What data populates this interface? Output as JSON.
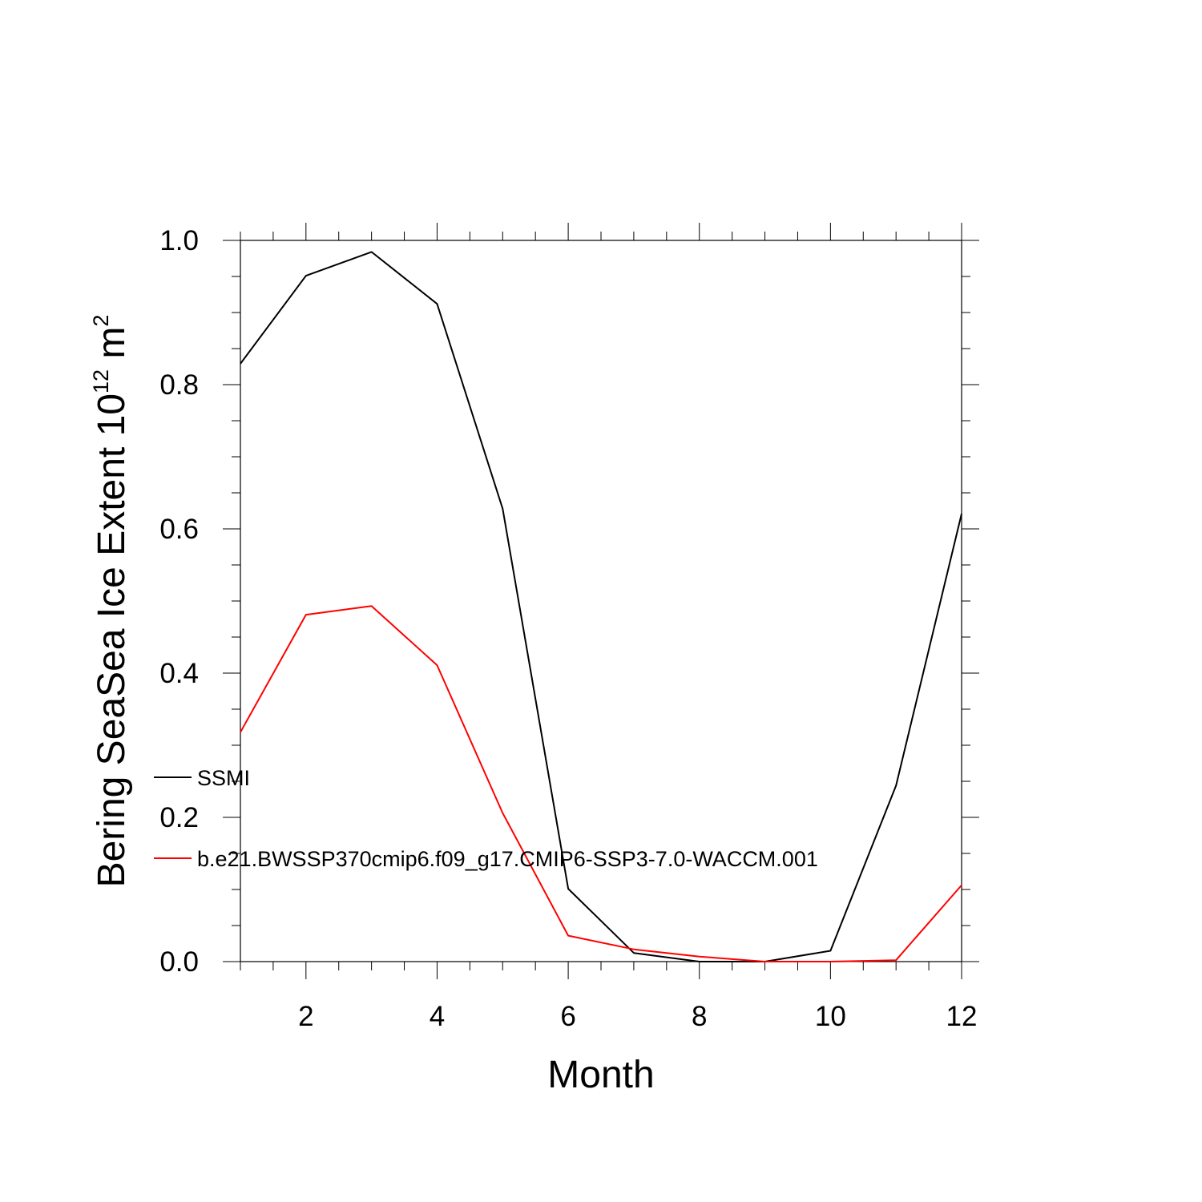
{
  "chart_data": {
    "type": "line",
    "xlabel": "Month",
    "ylabel_main": "Bering SeaSea Ice Extent 10",
    "ylabel_exp": "12",
    "ylabel_unit": " m",
    "ylabel_unit_exp": "2",
    "xlim": [
      1,
      12
    ],
    "ylim": [
      0,
      1.0
    ],
    "x_ticks": [
      2,
      4,
      6,
      8,
      10,
      12
    ],
    "x_tick_labels": [
      "2",
      "4",
      "6",
      "8",
      "10",
      "12"
    ],
    "y_ticks": [
      0,
      0.2,
      0.4,
      0.6,
      0.8,
      1.0
    ],
    "y_tick_labels": [
      "0.0",
      "0.2",
      "0.4",
      "0.6",
      "0.8",
      "1.0"
    ],
    "legend_position": "lower-left",
    "grid": false,
    "x": [
      1,
      2,
      3,
      4,
      5,
      6,
      7,
      8,
      9,
      10,
      11,
      12
    ],
    "series": [
      {
        "name": "SSMI",
        "color": "#000000",
        "values": [
          0.829,
          0.951,
          0.984,
          0.912,
          0.628,
          0.101,
          0.012,
          0.0,
          0.0,
          0.015,
          0.244,
          0.621
        ]
      },
      {
        "name": "b.e21.BWSSP370cmip6.f09_g17.CMIP6-SSP3-7.0-WACCM.001",
        "color": "#ff0000",
        "values": [
          0.318,
          0.481,
          0.493,
          0.411,
          0.206,
          0.036,
          0.017,
          0.007,
          0.0,
          0.0,
          0.002,
          0.106
        ]
      }
    ]
  }
}
